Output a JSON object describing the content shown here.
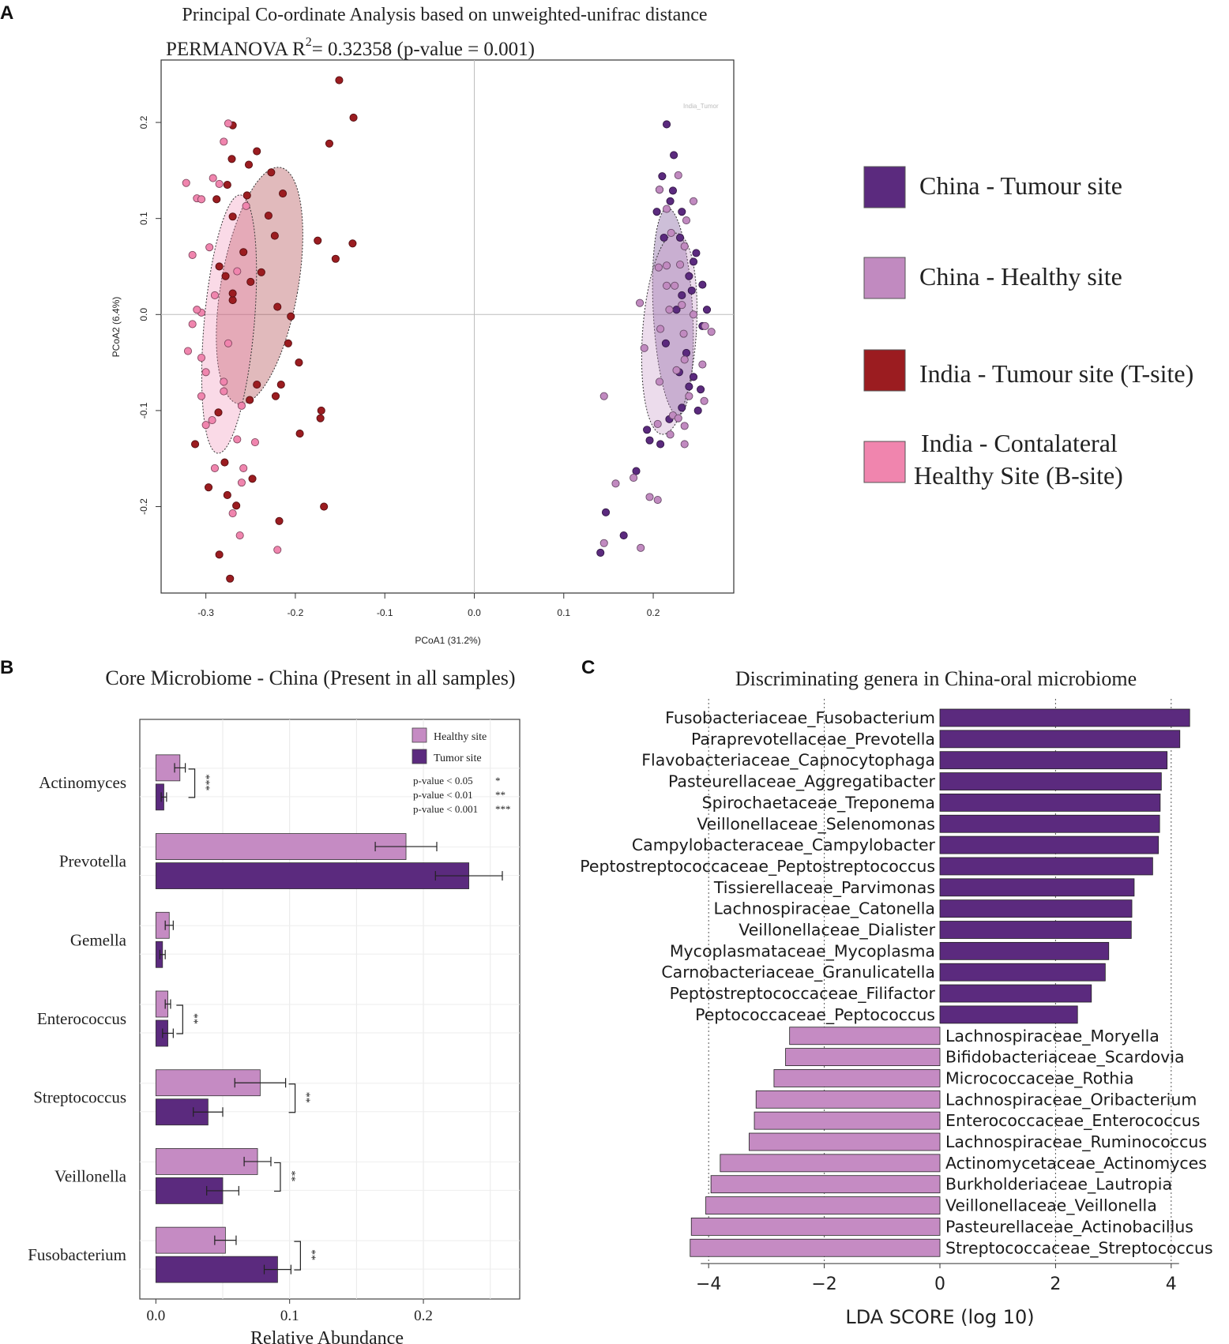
{
  "panel_labels": {
    "a": "A",
    "b": "B",
    "c": "C"
  },
  "legend_main": {
    "items": [
      {
        "label": "China - Tumour site",
        "color": "#5b2a7e"
      },
      {
        "label": "China - Healthy site",
        "color": "#c18ac0"
      },
      {
        "label": "India - Tumour site (T-site)",
        "color": "#9b1c20"
      },
      {
        "label_line1": "India - Contalateral",
        "label_line2": "Healthy Site (B-site)",
        "color": "#f085ae"
      }
    ]
  },
  "chart_data": [
    {
      "type": "scatter",
      "title": "Principal Co-ordinate Analysis based on unweighted-unifrac distance",
      "subtitle": "PERMANOVA R",
      "subtitle_sup": "2",
      "subtitle_rest": "= 0.32358 (p-value = 0.001)",
      "xlabel": "PCoA1 (31.2%)",
      "ylabel": "PCoA2 (6.4%)",
      "xlim": [
        -0.35,
        0.29
      ],
      "ylim": [
        -0.29,
        0.265
      ],
      "xticks": [
        -0.3,
        -0.2,
        -0.1,
        0.0,
        0.1,
        0.2
      ],
      "xtick_labels": [
        "-0.3",
        "-0.2",
        "-0.1",
        "0.0",
        "0.1",
        "0.2"
      ],
      "yticks": [
        -0.2,
        -0.1,
        0.0,
        0.1,
        0.2
      ],
      "ytick_labels": [
        "-0.2",
        "-0.1",
        "0.0",
        "0.1",
        "0.2"
      ],
      "faint_label": "India_Tumor",
      "series": [
        {
          "name": "India - Tumour site (T-site)",
          "color": "#9b1c20",
          "ellipse": {
            "cx": -0.24,
            "cy": 0.03,
            "rx": 0.043,
            "ry": 0.125,
            "angle": 10
          },
          "points": [
            [
              -0.151,
              0.244
            ],
            [
              -0.135,
              0.205
            ],
            [
              -0.162,
              0.178
            ],
            [
              -0.27,
              0.197
            ],
            [
              -0.271,
              0.162
            ],
            [
              -0.243,
              0.17
            ],
            [
              -0.252,
              0.156
            ],
            [
              -0.227,
              0.148
            ],
            [
              -0.254,
              0.124
            ],
            [
              -0.214,
              0.126
            ],
            [
              -0.276,
              0.135
            ],
            [
              -0.288,
              0.12
            ],
            [
              -0.27,
              0.102
            ],
            [
              -0.23,
              0.103
            ],
            [
              -0.175,
              0.077
            ],
            [
              -0.155,
              0.058
            ],
            [
              -0.223,
              0.082
            ],
            [
              -0.136,
              0.074
            ],
            [
              -0.238,
              0.044
            ],
            [
              -0.25,
              0.034
            ],
            [
              -0.22,
              0.008
            ],
            [
              -0.205,
              -0.002
            ],
            [
              -0.208,
              -0.03
            ],
            [
              -0.196,
              -0.05
            ],
            [
              -0.243,
              -0.073
            ],
            [
              -0.222,
              -0.085
            ],
            [
              -0.251,
              -0.089
            ],
            [
              -0.171,
              -0.1
            ],
            [
              -0.172,
              -0.108
            ],
            [
              -0.195,
              -0.124
            ],
            [
              -0.286,
              -0.102
            ],
            [
              -0.312,
              -0.135
            ],
            [
              -0.279,
              -0.154
            ],
            [
              -0.297,
              -0.18
            ],
            [
              -0.276,
              -0.188
            ],
            [
              -0.266,
              -0.199
            ],
            [
              -0.248,
              -0.171
            ],
            [
              -0.168,
              -0.2
            ],
            [
              -0.218,
              -0.215
            ],
            [
              -0.273,
              -0.275
            ],
            [
              -0.285,
              -0.25
            ],
            [
              -0.216,
              -0.073
            ],
            [
              -0.258,
              0.065
            ],
            [
              -0.278,
              0.04
            ],
            [
              -0.285,
              0.05
            ],
            [
              -0.27,
              0.015
            ],
            [
              -0.27,
              0.022
            ]
          ]
        },
        {
          "name": "India - Contalateral Healthy Site (B-site)",
          "color": "#f085ae",
          "ellipse": {
            "cx": -0.274,
            "cy": -0.01,
            "rx": 0.028,
            "ry": 0.135,
            "angle": 5
          },
          "points": [
            [
              -0.322,
              0.137
            ],
            [
              -0.28,
              0.18
            ],
            [
              -0.31,
              0.121
            ],
            [
              -0.275,
              0.199
            ],
            [
              -0.285,
              0.136
            ],
            [
              -0.255,
              0.113
            ],
            [
              -0.265,
              0.045
            ],
            [
              -0.29,
              0.02
            ],
            [
              -0.305,
              0.002
            ],
            [
              -0.31,
              0.005
            ],
            [
              -0.315,
              -0.01
            ],
            [
              -0.32,
              -0.038
            ],
            [
              -0.305,
              -0.045
            ],
            [
              -0.3,
              -0.06
            ],
            [
              -0.28,
              -0.07
            ],
            [
              -0.315,
              0.062
            ],
            [
              -0.296,
              0.07
            ],
            [
              -0.305,
              0.12
            ],
            [
              -0.292,
              0.142
            ],
            [
              -0.305,
              -0.085
            ],
            [
              -0.28,
              -0.08
            ],
            [
              -0.26,
              -0.095
            ],
            [
              -0.265,
              -0.13
            ],
            [
              -0.258,
              -0.16
            ],
            [
              -0.26,
              -0.175
            ],
            [
              -0.27,
              -0.207
            ],
            [
              -0.262,
              -0.23
            ],
            [
              -0.245,
              -0.133
            ],
            [
              -0.22,
              -0.245
            ],
            [
              -0.29,
              -0.16
            ],
            [
              -0.3,
              -0.115
            ],
            [
              -0.275,
              -0.03
            ],
            [
              -0.293,
              -0.11
            ]
          ]
        },
        {
          "name": "China - Tumour site",
          "color": "#5b2a7e",
          "ellipse": {
            "cx": 0.222,
            "cy": 0.003,
            "rx": 0.022,
            "ry": 0.108,
            "angle": -3
          },
          "points": [
            [
              0.215,
              0.198
            ],
            [
              0.223,
              0.166
            ],
            [
              0.21,
              0.144
            ],
            [
              0.207,
              0.13
            ],
            [
              0.222,
              0.129
            ],
            [
              0.219,
              0.118
            ],
            [
              0.204,
              0.107
            ],
            [
              0.232,
              0.107
            ],
            [
              0.212,
              0.08
            ],
            [
              0.23,
              0.08
            ],
            [
              0.248,
              0.064
            ],
            [
              0.245,
              0.055
            ],
            [
              0.24,
              0.04
            ],
            [
              0.255,
              0.031
            ],
            [
              0.243,
              0.025
            ],
            [
              0.232,
              0.02
            ],
            [
              0.26,
              0.005
            ],
            [
              0.226,
              0.005
            ],
            [
              0.255,
              -0.012
            ],
            [
              0.214,
              -0.03
            ],
            [
              0.229,
              -0.06
            ],
            [
              0.245,
              -0.065
            ],
            [
              0.24,
              -0.075
            ],
            [
              0.253,
              -0.078
            ],
            [
              0.25,
              -0.1
            ],
            [
              0.232,
              -0.097
            ],
            [
              0.196,
              -0.131
            ],
            [
              0.181,
              -0.163
            ],
            [
              0.167,
              -0.23
            ],
            [
              0.141,
              -0.248
            ],
            [
              0.147,
              -0.206
            ],
            [
              0.193,
              -0.12
            ],
            [
              0.208,
              -0.135
            ],
            [
              0.218,
              -0.109
            ],
            [
              0.237,
              -0.04
            ]
          ]
        },
        {
          "name": "China - Healthy site",
          "color": "#c18ac0",
          "ellipse": {
            "cx": 0.218,
            "cy": -0.02,
            "rx": 0.03,
            "ry": 0.105,
            "angle": 4
          },
          "points": [
            [
              0.228,
              0.145
            ],
            [
              0.207,
              0.13
            ],
            [
              0.215,
              0.11
            ],
            [
              0.245,
              0.118
            ],
            [
              0.237,
              0.098
            ],
            [
              0.22,
              0.085
            ],
            [
              0.235,
              0.071
            ],
            [
              0.23,
              0.052
            ],
            [
              0.215,
              0.051
            ],
            [
              0.206,
              0.049
            ],
            [
              0.215,
              0.03
            ],
            [
              0.224,
              0.03
            ],
            [
              0.232,
              0.01
            ],
            [
              0.218,
              0.005
            ],
            [
              0.185,
              0.012
            ],
            [
              0.258,
              -0.012
            ],
            [
              0.245,
              0.0
            ],
            [
              0.265,
              -0.018
            ],
            [
              0.208,
              -0.015
            ],
            [
              0.234,
              -0.02
            ],
            [
              0.19,
              -0.035
            ],
            [
              0.235,
              -0.047
            ],
            [
              0.255,
              -0.052
            ],
            [
              0.226,
              -0.058
            ],
            [
              0.207,
              -0.07
            ],
            [
              0.24,
              -0.085
            ],
            [
              0.145,
              -0.085
            ],
            [
              0.222,
              -0.105
            ],
            [
              0.235,
              -0.116
            ],
            [
              0.205,
              -0.114
            ],
            [
              0.219,
              -0.125
            ],
            [
              0.235,
              -0.135
            ],
            [
              0.158,
              -0.176
            ],
            [
              0.178,
              -0.17
            ],
            [
              0.145,
              -0.238
            ],
            [
              0.196,
              -0.19
            ],
            [
              0.186,
              -0.243
            ],
            [
              0.205,
              -0.193
            ],
            [
              0.228,
              -0.108
            ],
            [
              0.257,
              -0.09
            ]
          ]
        }
      ]
    },
    {
      "type": "bar",
      "orientation": "horizontal",
      "title": "Core Microbiome - China (Present in all samples)",
      "xlabel": "Relative Abundance",
      "xlim": [
        -0.012,
        0.272
      ],
      "xticks": [
        0.0,
        0.1,
        0.2
      ],
      "xtick_labels": [
        "0.0",
        "0.1",
        "0.2"
      ],
      "categories": [
        "Actinomyces",
        "Prevotella",
        "Gemella",
        "Enterococcus",
        "Streptococcus",
        "Veillonella",
        "Fusobacterium"
      ],
      "series": [
        {
          "name": "Healthy site",
          "color": "#c58bc3",
          "values": [
            0.018,
            0.187,
            0.01,
            0.009,
            0.078,
            0.076,
            0.052
          ],
          "errors": [
            0.004,
            0.023,
            0.003,
            0.002,
            0.019,
            0.01,
            0.008
          ]
        },
        {
          "name": "Tumor site",
          "color": "#5b2a7e",
          "values": [
            0.006,
            0.234,
            0.005,
            0.009,
            0.039,
            0.05,
            0.091
          ],
          "errors": [
            0.002,
            0.025,
            0.002,
            0.004,
            0.011,
            0.012,
            0.01
          ]
        }
      ],
      "significance": [
        "***",
        "",
        "",
        "**",
        "**",
        "**",
        "**"
      ],
      "pvalue_legend": [
        {
          "label": "p-value < 0.05",
          "stars": "*"
        },
        {
          "label": "p-value < 0.01",
          "stars": "**"
        },
        {
          "label": "p-value < 0.001",
          "stars": "***"
        }
      ]
    },
    {
      "type": "bar",
      "orientation": "horizontal",
      "title": "Discriminating genera in China-oral microbiome",
      "xlabel": "LDA SCORE (log 10)",
      "xlim": [
        -4.4,
        4.6
      ],
      "xticks": [
        -4,
        -2,
        0,
        2,
        4
      ],
      "xtick_labels": [
        "−4",
        "−2",
        "0",
        "2",
        "4"
      ],
      "colors": {
        "positive": "#5b2a7e",
        "negative": "#c58bc3"
      },
      "categories": [
        "Fusobacteriaceae_Fusobacterium",
        "Paraprevotellaceae_Prevotella",
        "Flavobacteriaceae_Capnocytophaga",
        "Pasteurellaceae_Aggregatibacter",
        "Spirochaetaceae_Treponema",
        "Veillonellaceae_Selenomonas",
        "Campylobacteraceae_Campylobacter",
        "Peptostreptococcaceae_Peptostreptococcus",
        "Tissierellaceae_Parvimonas",
        "Lachnospiraceae_Catonella",
        "Veillonellaceae_Dialister",
        "Mycoplasmataceae_Mycoplasma",
        "Carnobacteriaceae_Granulicatella",
        "Peptostreptococcaceae_Filifactor",
        "Peptococcaceae_Peptococcus",
        "Lachnospiraceae_Moryella",
        "Bifidobacteriaceae_Scardovia",
        "Micrococcaceae_Rothia",
        "Lachnospiraceae_Oribacterium",
        "Enterococcaceae_Enterococcus",
        "Lachnospiraceae_Ruminococcus",
        "Actinomycetaceae_Actinomyces",
        "Burkholderiaceae_Lautropia",
        "Veillonellaceae_Veillonella",
        "Pasteurellaceae_Actinobacillus",
        "Streptococcaceae_Streptococcus"
      ],
      "values": [
        4.32,
        4.15,
        3.93,
        3.83,
        3.81,
        3.8,
        3.78,
        3.68,
        3.36,
        3.32,
        3.31,
        2.92,
        2.86,
        2.62,
        2.38,
        -2.6,
        -2.67,
        -2.87,
        -3.18,
        -3.21,
        -3.3,
        -3.8,
        -3.96,
        -4.05,
        -4.3,
        -4.32
      ]
    }
  ]
}
